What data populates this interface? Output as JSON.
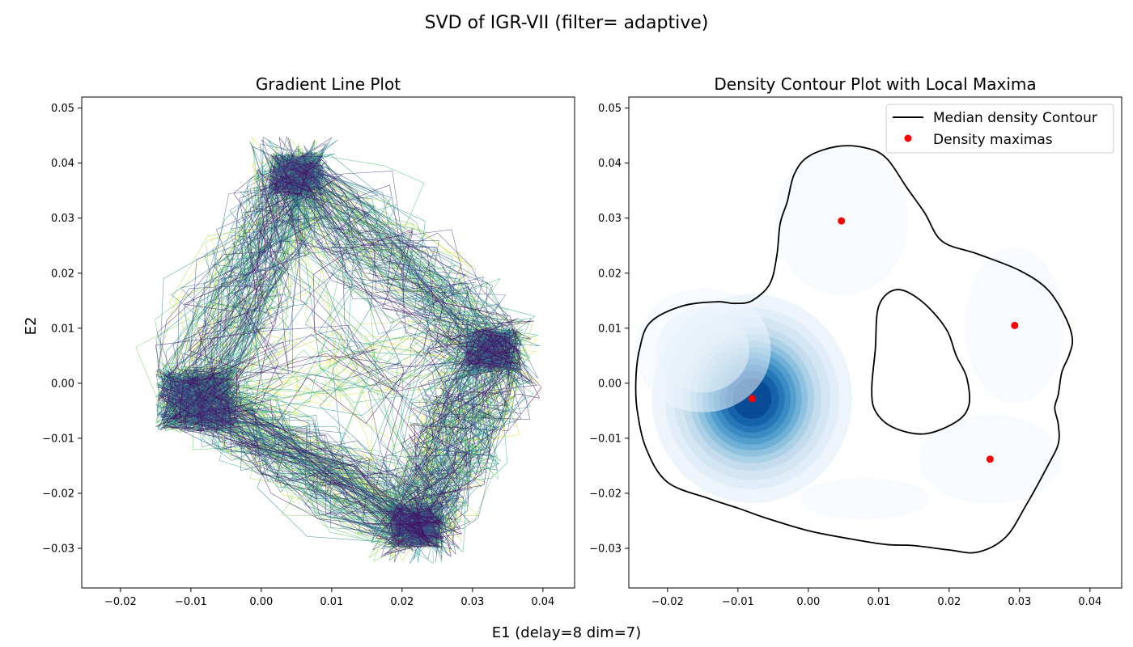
{
  "figure": {
    "suptitle": "SVD of IGR-VII (filter= adaptive)",
    "xlabel": "E1 (delay=8 dim=7)",
    "ylabel": "E2"
  },
  "chart_data": [
    {
      "type": "line",
      "title": "Gradient Line Plot",
      "xlabel": "E1 (delay=8 dim=7)",
      "ylabel": "E2",
      "xlim": [
        -0.0255,
        0.0445
      ],
      "ylim": [
        -0.0372,
        0.052
      ],
      "xticks": [
        -0.02,
        -0.01,
        0.0,
        0.01,
        0.02,
        0.03,
        0.04
      ],
      "xtick_labels": [
        "−0.02",
        "−0.01",
        "0.00",
        "0.01",
        "0.02",
        "0.03",
        "0.04"
      ],
      "yticks": [
        -0.03,
        -0.02,
        -0.01,
        0.0,
        0.01,
        0.02,
        0.03,
        0.04,
        0.05
      ],
      "ytick_labels": [
        "−0.03",
        "−0.02",
        "−0.01",
        "0.00",
        "0.01",
        "0.02",
        "0.03",
        "0.04",
        "0.05"
      ],
      "colormap": "viridis",
      "trajectory_anchors": [
        {
          "name": "left cluster",
          "x": -0.009,
          "y": -0.003
        },
        {
          "name": "top",
          "x": 0.005,
          "y": 0.038
        },
        {
          "name": "right",
          "x": 0.033,
          "y": 0.006
        },
        {
          "name": "bottom",
          "x": 0.022,
          "y": -0.026
        }
      ],
      "grid": false
    },
    {
      "type": "heatmap",
      "title": "Density Contour Plot with Local Maxima",
      "xlabel": "E1 (delay=8 dim=7)",
      "ylabel": "E2",
      "xlim": [
        -0.0255,
        0.0445
      ],
      "ylim": [
        -0.0372,
        0.052
      ],
      "xticks": [
        -0.02,
        -0.01,
        0.0,
        0.01,
        0.02,
        0.03,
        0.04
      ],
      "xtick_labels": [
        "−0.02",
        "−0.01",
        "0.00",
        "0.01",
        "0.02",
        "0.03",
        "0.04"
      ],
      "yticks": [
        -0.03,
        -0.02,
        -0.01,
        0.0,
        0.01,
        0.02,
        0.03,
        0.04,
        0.05
      ],
      "ytick_labels": [
        "−0.03",
        "−0.02",
        "−0.01",
        "0.00",
        "0.01",
        "0.02",
        "0.03",
        "0.04",
        "0.05"
      ],
      "colormap": "Blues",
      "density_maxima": [
        {
          "x": -0.008,
          "y": -0.0028
        },
        {
          "x": 0.0047,
          "y": 0.0295
        },
        {
          "x": 0.0293,
          "y": 0.0105
        },
        {
          "x": 0.0258,
          "y": -0.0138
        }
      ],
      "density_peak_heights": [
        1.0,
        0.15,
        0.12,
        0.1
      ],
      "outer_contour": [
        [
          -0.0245,
          0.0005
        ],
        [
          -0.024,
          0.006
        ],
        [
          -0.0225,
          0.011
        ],
        [
          -0.018,
          0.014
        ],
        [
          -0.013,
          0.0148
        ],
        [
          -0.0105,
          0.0145
        ],
        [
          -0.008,
          0.015
        ],
        [
          -0.0055,
          0.018
        ],
        [
          -0.0045,
          0.023
        ],
        [
          -0.004,
          0.029
        ],
        [
          -0.003,
          0.033
        ],
        [
          -0.002,
          0.038
        ],
        [
          0.0,
          0.0412
        ],
        [
          0.004,
          0.043
        ],
        [
          0.008,
          0.0428
        ],
        [
          0.011,
          0.041
        ],
        [
          0.014,
          0.0355
        ],
        [
          0.0165,
          0.031
        ],
        [
          0.019,
          0.0258
        ],
        [
          0.024,
          0.0235
        ],
        [
          0.03,
          0.0205
        ],
        [
          0.034,
          0.017
        ],
        [
          0.0365,
          0.012
        ],
        [
          0.0375,
          0.008
        ],
        [
          0.037,
          0.005
        ],
        [
          0.036,
          0.002
        ],
        [
          0.0355,
          -0.002
        ],
        [
          0.035,
          -0.0045
        ],
        [
          0.0355,
          -0.0075
        ],
        [
          0.0355,
          -0.011
        ],
        [
          0.034,
          -0.015
        ],
        [
          0.031,
          -0.022
        ],
        [
          0.028,
          -0.028
        ],
        [
          0.024,
          -0.0307
        ],
        [
          0.02,
          -0.0303
        ],
        [
          0.015,
          -0.0295
        ],
        [
          0.011,
          -0.0293
        ],
        [
          0.006,
          -0.0283
        ],
        [
          0.0,
          -0.0268
        ],
        [
          -0.006,
          -0.0245
        ],
        [
          -0.01,
          -0.0227
        ],
        [
          -0.014,
          -0.021
        ],
        [
          -0.02,
          -0.018
        ],
        [
          -0.023,
          -0.012
        ],
        [
          -0.0243,
          -0.005
        ]
      ],
      "inner_contour": [
        [
          0.009,
          -0.001
        ],
        [
          0.0095,
          0.006
        ],
        [
          0.01,
          0.014
        ],
        [
          0.0125,
          0.017
        ],
        [
          0.016,
          0.015
        ],
        [
          0.0195,
          0.01
        ],
        [
          0.021,
          0.005
        ],
        [
          0.0225,
          0.001
        ],
        [
          0.0228,
          -0.004
        ],
        [
          0.021,
          -0.007
        ],
        [
          0.0165,
          -0.0092
        ],
        [
          0.012,
          -0.008
        ],
        [
          0.0095,
          -0.005
        ]
      ],
      "legend": {
        "position": "upper right",
        "entries": [
          {
            "label": "Median density Contour",
            "marker": "line",
            "color": "#000000"
          },
          {
            "label": "Density maximas",
            "marker": "dot",
            "color": "#ff0000"
          }
        ]
      },
      "grid": false
    }
  ]
}
